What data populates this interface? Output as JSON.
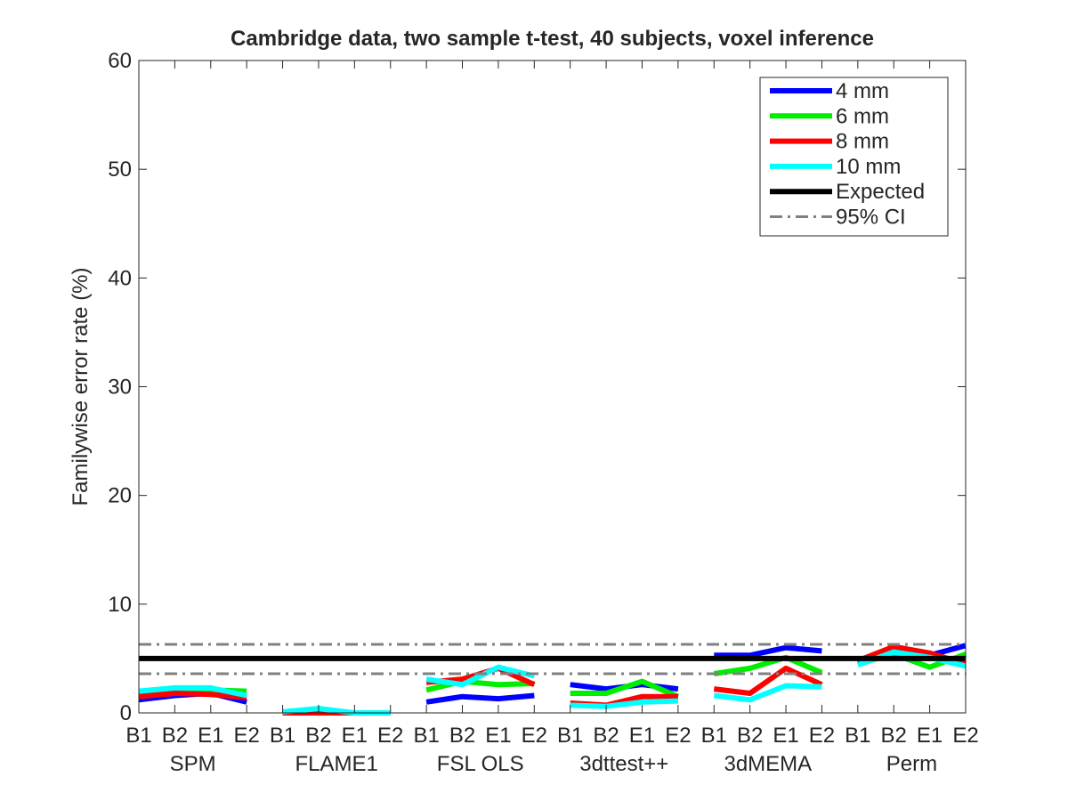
{
  "chart_data": {
    "type": "line",
    "title": "Cambridge data, two sample t-test, 40 subjects, voxel inference",
    "xlabel": "",
    "ylabel": "Familywise error rate (%)",
    "ylim": [
      0,
      60
    ],
    "yticks": [
      0,
      10,
      20,
      30,
      40,
      50,
      60
    ],
    "grid": false,
    "legend_position": "top-right",
    "groups": [
      "SPM",
      "FLAME1",
      "FSL OLS",
      "3dttest++",
      "3dMEMA",
      "Perm"
    ],
    "group_categories": [
      "B1",
      "B2",
      "E1",
      "E2"
    ],
    "series": [
      {
        "name": "4 mm",
        "color": "#0000ff",
        "values": [
          [
            1.2,
            1.6,
            1.8,
            1.0
          ],
          [
            0.0,
            0.0,
            0.0,
            0.0
          ],
          [
            1.0,
            1.5,
            1.3,
            1.6
          ],
          [
            2.6,
            2.2,
            2.6,
            2.2
          ],
          [
            5.3,
            5.3,
            6.0,
            5.7
          ],
          [
            4.6,
            5.6,
            5.3,
            6.2
          ]
        ]
      },
      {
        "name": "6 mm",
        "color": "#00ee00",
        "values": [
          [
            1.7,
            2.0,
            2.1,
            2.0
          ],
          [
            0.0,
            0.0,
            0.0,
            0.0
          ],
          [
            2.1,
            2.9,
            2.6,
            2.7
          ],
          [
            1.8,
            1.8,
            2.9,
            1.5
          ],
          [
            3.6,
            4.1,
            5.1,
            3.7
          ],
          [
            4.5,
            5.4,
            4.2,
            5.4
          ]
        ]
      },
      {
        "name": "8 mm",
        "color": "#ff0000",
        "values": [
          [
            1.5,
            1.8,
            1.7,
            1.4
          ],
          [
            0.0,
            0.0,
            0.0,
            0.0
          ],
          [
            2.8,
            3.1,
            4.1,
            2.6
          ],
          [
            0.9,
            0.7,
            1.5,
            1.5
          ],
          [
            2.2,
            1.8,
            4.1,
            2.6
          ],
          [
            4.8,
            6.1,
            5.5,
            4.5
          ]
        ]
      },
      {
        "name": "10 mm",
        "color": "#00ffff",
        "values": [
          [
            2.0,
            2.3,
            2.3,
            1.6
          ],
          [
            0.1,
            0.4,
            0.0,
            0.0
          ],
          [
            3.1,
            2.6,
            4.2,
            3.4
          ],
          [
            0.7,
            0.6,
            1.0,
            1.1
          ],
          [
            1.6,
            1.2,
            2.5,
            2.4
          ],
          [
            4.4,
            5.6,
            5.1,
            4.3
          ]
        ]
      }
    ],
    "expected": {
      "name": "Expected",
      "value": 5.0,
      "color": "#000000"
    },
    "ci": {
      "name": "95% CI",
      "lower": 3.6,
      "upper": 6.3,
      "color": "#808080"
    }
  }
}
